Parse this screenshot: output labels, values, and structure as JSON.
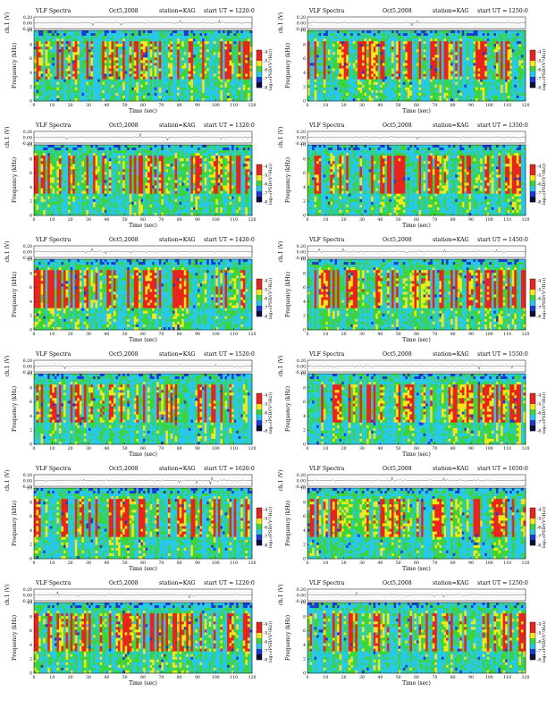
{
  "common": {
    "header_title": "VLF Spectra",
    "date": "Oct5,2008",
    "station": "station=KAG",
    "start_ut_label": "start  UT =",
    "ch_label": "ch.1 (V)",
    "freq_label": "Frequency (kHz)",
    "time_label": "Time (sec)",
    "colorbar_label": "log₁₀(PSD/(V²/Hz))",
    "colorbar_ticks": [
      "-4",
      "-5",
      "-6",
      "-7",
      "-8"
    ],
    "colors": {
      "red": "#e8241c",
      "yellow": "#f4e81a",
      "green": "#3cd43c",
      "cyan": "#29c9e6",
      "blue": "#1b3bd0",
      "dark": "#0a0f3c"
    }
  },
  "chart_data": [
    {
      "type": "heatmap",
      "title": "VLF Spectra",
      "start_ut": "1220:0",
      "xlabel": "Time (sec)",
      "ylabel": "Frequency (kHz)",
      "xlim": [
        0,
        120
      ],
      "ylim": [
        0,
        10
      ],
      "x_ticks": [
        "0",
        "10",
        "20",
        "30",
        "40",
        "50",
        "60",
        "70",
        "80",
        "90",
        "100",
        "110",
        "120"
      ],
      "y_ticks": [
        "0",
        "2",
        "4",
        "6",
        "8",
        "10"
      ],
      "wave_ylim": [
        -0.2,
        0.2
      ],
      "wave_ticks": [
        "0.20",
        "0.00",
        "-0.20"
      ],
      "colorbar_range": [
        -4,
        -8
      ]
    },
    {
      "type": "heatmap",
      "title": "VLF Spectra",
      "start_ut": "1250:0",
      "xlabel": "Time (sec)",
      "ylabel": "Frequency (kHz)",
      "xlim": [
        0,
        120
      ],
      "ylim": [
        0,
        10
      ],
      "x_ticks": [
        "0",
        "10",
        "20",
        "30",
        "40",
        "50",
        "60",
        "70",
        "80",
        "90",
        "100",
        "110",
        "120"
      ],
      "y_ticks": [
        "0",
        "2",
        "4",
        "6",
        "8",
        "10"
      ],
      "wave_ylim": [
        -0.2,
        0.2
      ],
      "wave_ticks": [
        "0.20",
        "0.00",
        "-0.20"
      ],
      "colorbar_range": [
        -4,
        -8
      ]
    },
    {
      "type": "heatmap",
      "title": "VLF Spectra",
      "start_ut": "1320:0",
      "xlabel": "Time (sec)",
      "ylabel": "Frequency (kHz)",
      "xlim": [
        0,
        120
      ],
      "ylim": [
        0,
        10
      ],
      "x_ticks": [
        "0",
        "10",
        "20",
        "30",
        "40",
        "50",
        "60",
        "70",
        "80",
        "90",
        "100",
        "110",
        "120"
      ],
      "y_ticks": [
        "0",
        "2",
        "4",
        "6",
        "8",
        "10"
      ],
      "wave_ylim": [
        -0.2,
        0.2
      ],
      "wave_ticks": [
        "0.20",
        "0.00",
        "-0.20"
      ],
      "colorbar_range": [
        -4,
        -8
      ]
    },
    {
      "type": "heatmap",
      "title": "VLF Spectra",
      "start_ut": "1350:0",
      "xlabel": "Time (sec)",
      "ylabel": "Frequency (kHz)",
      "xlim": [
        0,
        120
      ],
      "ylim": [
        0,
        10
      ],
      "x_ticks": [
        "0",
        "10",
        "20",
        "30",
        "40",
        "50",
        "60",
        "70",
        "80",
        "90",
        "100",
        "110",
        "120"
      ],
      "y_ticks": [
        "0",
        "2",
        "4",
        "6",
        "8",
        "10"
      ],
      "wave_ylim": [
        -0.2,
        0.2
      ],
      "wave_ticks": [
        "0.20",
        "0.00",
        "-0.20"
      ],
      "colorbar_range": [
        -4,
        -8
      ]
    },
    {
      "type": "heatmap",
      "title": "VLF Spectra",
      "start_ut": "1420:0",
      "xlabel": "Time (sec)",
      "ylabel": "Frequency (kHz)",
      "xlim": [
        0,
        120
      ],
      "ylim": [
        0,
        10
      ],
      "x_ticks": [
        "0",
        "10",
        "20",
        "30",
        "40",
        "50",
        "60",
        "70",
        "80",
        "90",
        "100",
        "110",
        "120"
      ],
      "y_ticks": [
        "0",
        "2",
        "4",
        "6",
        "8",
        "10"
      ],
      "wave_ylim": [
        -0.2,
        0.2
      ],
      "wave_ticks": [
        "0.20",
        "0.00",
        "-0.20"
      ],
      "colorbar_range": [
        -4,
        -8
      ]
    },
    {
      "type": "heatmap",
      "title": "VLF Spectra",
      "start_ut": "1450:0",
      "xlabel": "Time (sec)",
      "ylabel": "Frequency (kHz)",
      "xlim": [
        0,
        120
      ],
      "ylim": [
        0,
        10
      ],
      "x_ticks": [
        "0",
        "10",
        "20",
        "30",
        "40",
        "50",
        "60",
        "70",
        "80",
        "90",
        "100",
        "110",
        "120"
      ],
      "y_ticks": [
        "0",
        "2",
        "4",
        "6",
        "8",
        "10"
      ],
      "wave_ylim": [
        -0.2,
        0.2
      ],
      "wave_ticks": [
        "0.20",
        "0.00",
        "-0.20"
      ],
      "colorbar_range": [
        -4,
        -8
      ]
    },
    {
      "type": "heatmap",
      "title": "VLF Spectra",
      "start_ut": "1520:0",
      "xlabel": "Time (sec)",
      "ylabel": "Frequency (kHz)",
      "xlim": [
        0,
        120
      ],
      "ylim": [
        0,
        10
      ],
      "x_ticks": [
        "0",
        "10",
        "20",
        "30",
        "40",
        "50",
        "60",
        "70",
        "80",
        "90",
        "100",
        "110",
        "120"
      ],
      "y_ticks": [
        "0",
        "2",
        "4",
        "6",
        "8",
        "10"
      ],
      "wave_ylim": [
        -0.2,
        0.2
      ],
      "wave_ticks": [
        "0.20",
        "0.00",
        "-0.20"
      ],
      "colorbar_range": [
        -4,
        -8
      ]
    },
    {
      "type": "heatmap",
      "title": "VLF Spectra",
      "start_ut": "1550:0",
      "xlabel": "Time (sec)",
      "ylabel": "Frequency (kHz)",
      "xlim": [
        0,
        120
      ],
      "ylim": [
        0,
        10
      ],
      "x_ticks": [
        "0",
        "10",
        "20",
        "30",
        "40",
        "50",
        "60",
        "70",
        "80",
        "90",
        "100",
        "110",
        "120"
      ],
      "y_ticks": [
        "0",
        "2",
        "4",
        "6",
        "8",
        "10"
      ],
      "wave_ylim": [
        -0.2,
        0.2
      ],
      "wave_ticks": [
        "0.20",
        "0.00",
        "-0.20"
      ],
      "colorbar_range": [
        -4,
        -8
      ]
    },
    {
      "type": "heatmap",
      "title": "VLF Spectra",
      "start_ut": "1620:0",
      "xlabel": "Time (sec)",
      "ylabel": "Frequency (kHz)",
      "xlim": [
        0,
        120
      ],
      "ylim": [
        0,
        10
      ],
      "x_ticks": [
        "0",
        "10",
        "20",
        "30",
        "40",
        "50",
        "60",
        "70",
        "80",
        "90",
        "100",
        "110",
        "120"
      ],
      "y_ticks": [
        "0",
        "2",
        "4",
        "6",
        "8",
        "10"
      ],
      "wave_ylim": [
        -0.2,
        0.2
      ],
      "wave_ticks": [
        "0.20",
        "0.00",
        "-0.20"
      ],
      "colorbar_range": [
        -4,
        -8
      ]
    },
    {
      "type": "heatmap",
      "title": "VLF Spectra",
      "start_ut": "1650:0",
      "xlabel": "Time (sec)",
      "ylabel": "Frequency (kHz)",
      "xlim": [
        0,
        120
      ],
      "ylim": [
        0,
        10
      ],
      "x_ticks": [
        "0",
        "10",
        "20",
        "30",
        "40",
        "50",
        "60",
        "70",
        "80",
        "90",
        "100",
        "110",
        "120"
      ],
      "y_ticks": [
        "0",
        "2",
        "4",
        "6",
        "8",
        "10"
      ],
      "wave_ylim": [
        -0.2,
        0.2
      ],
      "wave_ticks": [
        "0.20",
        "0.00",
        "-0.20"
      ],
      "colorbar_range": [
        -4,
        -8
      ]
    },
    {
      "type": "heatmap",
      "title": "VLF Spectra",
      "start_ut": "1220:0",
      "xlabel": "Time (sec)",
      "ylabel": "Frequency (kHz)",
      "xlim": [
        0,
        120
      ],
      "ylim": [
        0,
        10
      ],
      "x_ticks": [
        "0",
        "10",
        "20",
        "30",
        "40",
        "50",
        "60",
        "70",
        "80",
        "90",
        "100",
        "110",
        "120"
      ],
      "y_ticks": [
        "0",
        "2",
        "4",
        "6",
        "8",
        "10"
      ],
      "wave_ylim": [
        -0.2,
        0.2
      ],
      "wave_ticks": [
        "0.20",
        "0.00",
        "-0.20"
      ],
      "colorbar_range": [
        -4,
        -8
      ]
    },
    {
      "type": "heatmap",
      "title": "VLF Spectra",
      "start_ut": "1250:0",
      "xlabel": "Time (sec)",
      "ylabel": "Frequency (kHz)",
      "xlim": [
        0,
        120
      ],
      "ylim": [
        0,
        10
      ],
      "x_ticks": [
        "0",
        "10",
        "20",
        "30",
        "40",
        "50",
        "60",
        "70",
        "80",
        "90",
        "100",
        "110",
        "120"
      ],
      "y_ticks": [
        "0",
        "2",
        "4",
        "6",
        "8",
        "10"
      ],
      "wave_ylim": [
        -0.2,
        0.2
      ],
      "wave_ticks": [
        "0.20",
        "0.00",
        "-0.20"
      ],
      "colorbar_range": [
        -4,
        -8
      ]
    }
  ]
}
